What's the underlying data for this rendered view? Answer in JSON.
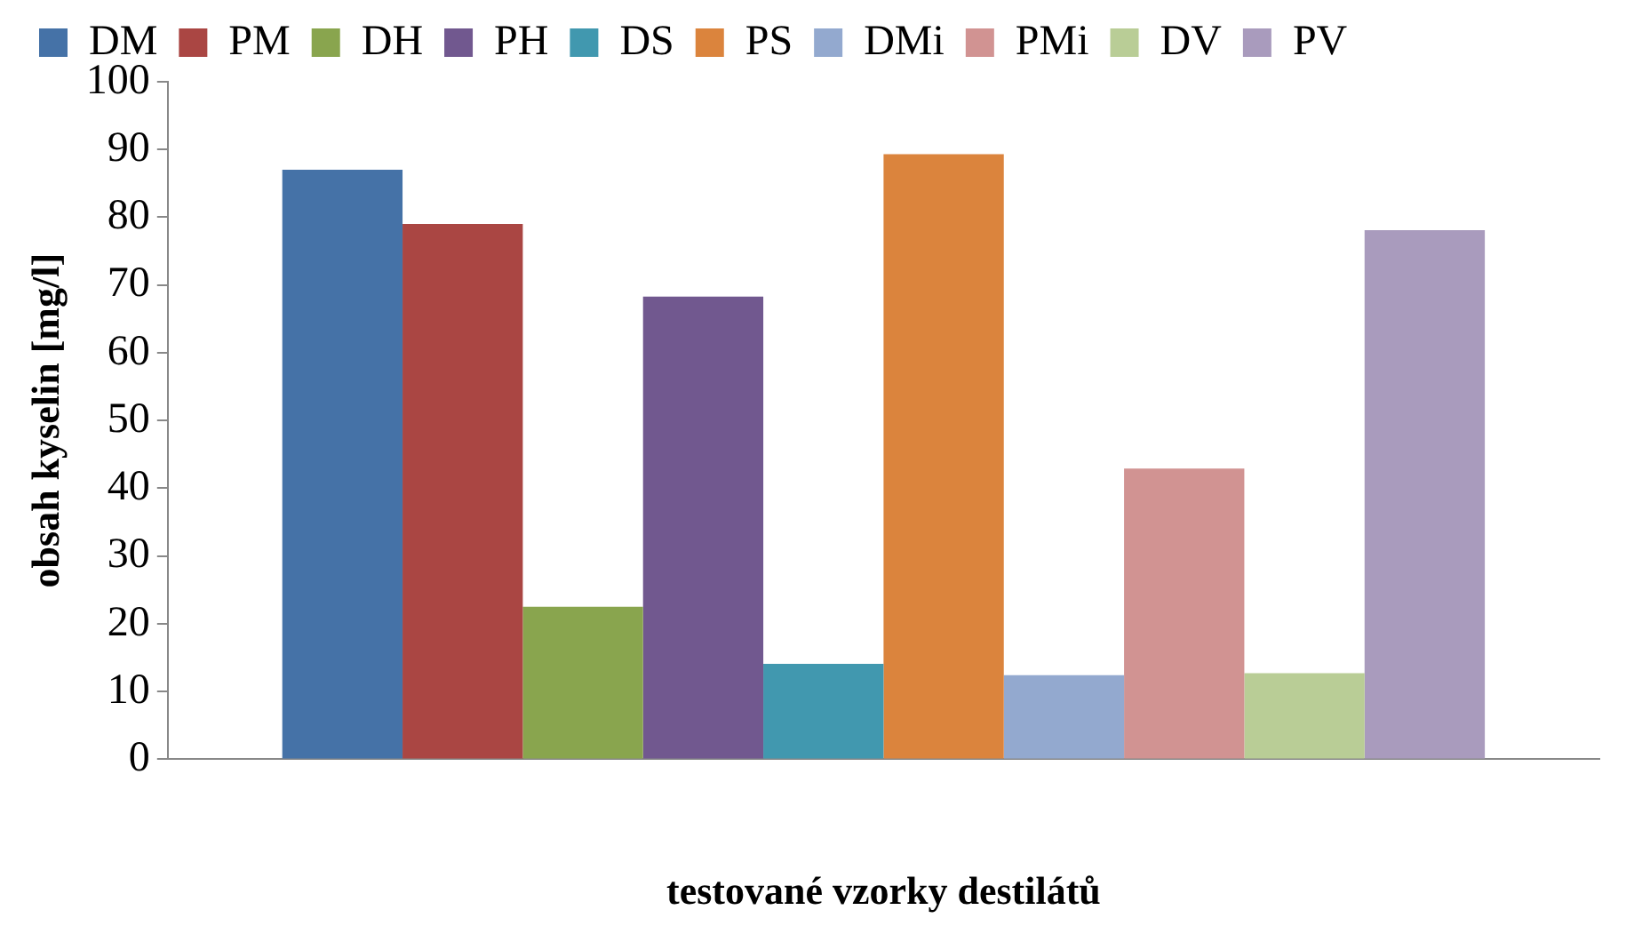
{
  "chart_data": {
    "type": "bar",
    "xlabel": "testované vzorky destilátů",
    "ylabel": "obsah kyselin [mg/l]",
    "categories": [
      null
    ],
    "series": [
      {
        "name": "DM",
        "color": "#4572a7",
        "values": [
          87
        ]
      },
      {
        "name": "PM",
        "color": "#aa4643",
        "values": [
          79
        ]
      },
      {
        "name": "DH",
        "color": "#89a54e",
        "values": [
          22.5
        ]
      },
      {
        "name": "PH",
        "color": "#71588f",
        "values": [
          68.3
        ]
      },
      {
        "name": "DS",
        "color": "#4198af",
        "values": [
          14.1
        ]
      },
      {
        "name": "PS",
        "color": "#db843d",
        "values": [
          89.3
        ]
      },
      {
        "name": "DMi",
        "color": "#93a9cf",
        "values": [
          12.4
        ]
      },
      {
        "name": "PMi",
        "color": "#d19392",
        "values": [
          42.9
        ]
      },
      {
        "name": "DV",
        "color": "#b9cd96",
        "values": [
          12.7
        ]
      },
      {
        "name": "PV",
        "color": "#a99bbd",
        "values": [
          78.1
        ]
      }
    ],
    "ylim": [
      0,
      100
    ],
    "yticks": [
      0,
      10,
      20,
      30,
      40,
      50,
      60,
      70,
      80,
      90,
      100
    ],
    "grid": false,
    "legend": "top"
  }
}
